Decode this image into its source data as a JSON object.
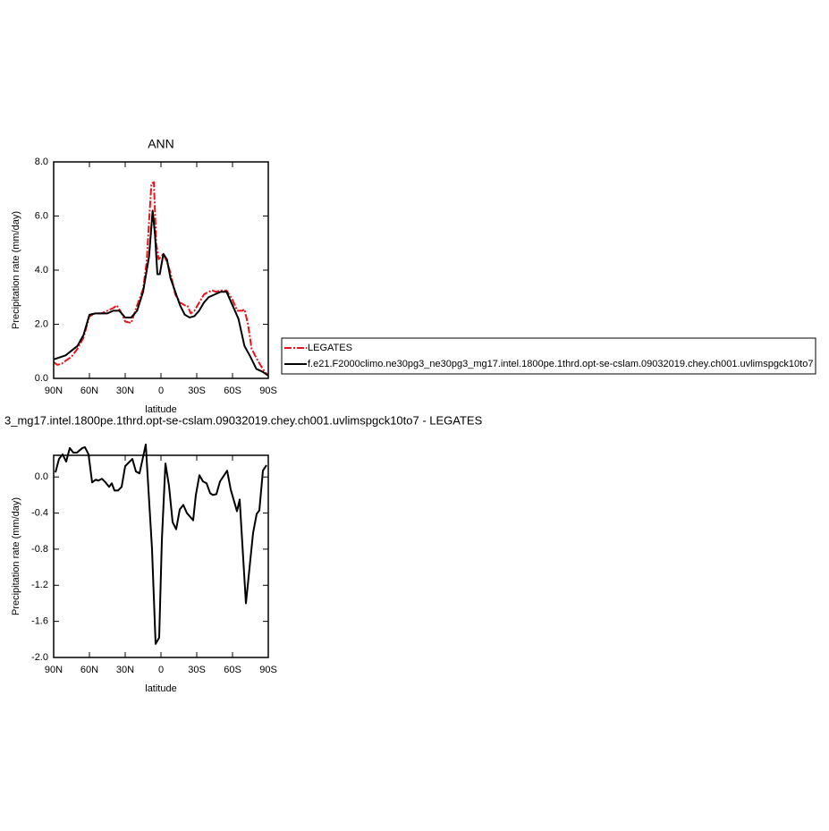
{
  "chart_data": [
    {
      "type": "line",
      "title": "ANN",
      "xlabel": "latitude",
      "ylabel": "Precipitation rate (mm/day)",
      "xlim": [
        90,
        -90
      ],
      "ylim": [
        0,
        8
      ],
      "xticks": [
        {
          "value": 90,
          "label": "90N"
        },
        {
          "value": 60,
          "label": "60N"
        },
        {
          "value": 30,
          "label": "30N"
        },
        0,
        {
          "value": -30,
          "label": "30S"
        },
        {
          "value": -60,
          "label": "60S"
        },
        {
          "value": -90,
          "label": "90S"
        }
      ],
      "yticks": [
        {
          "value": 0,
          "label": "0.0"
        },
        {
          "value": 2,
          "label": "2.0"
        },
        {
          "value": 4,
          "label": "4.0"
        },
        {
          "value": 6,
          "label": "6.0"
        },
        {
          "value": 8,
          "label": "8.0"
        }
      ],
      "series": [
        {
          "name": "LEGATES",
          "color": "#e8141b",
          "dash": true,
          "x": [
            90,
            87,
            83,
            80,
            75,
            70,
            65,
            60,
            55,
            50,
            45,
            40,
            37,
            33,
            30,
            25,
            20,
            15,
            12,
            10,
            8,
            6,
            4,
            2,
            0,
            -2,
            -5,
            -8,
            -12,
            -16,
            -20,
            -22,
            -25,
            -28,
            -32,
            -36,
            -40,
            -43,
            -46,
            -50,
            -55,
            -60,
            -64,
            -68,
            -70,
            -73,
            -76,
            -80,
            -84,
            -87,
            -90
          ],
          "values": [
            0.6,
            0.5,
            0.55,
            0.65,
            0.8,
            1.1,
            1.5,
            2.3,
            2.4,
            2.4,
            2.5,
            2.6,
            2.7,
            2.4,
            2.1,
            2.05,
            2.7,
            3.3,
            4.3,
            5.8,
            7.2,
            7.25,
            5.0,
            4.4,
            4.5,
            4.6,
            4.3,
            3.9,
            3.1,
            2.8,
            2.7,
            2.7,
            2.4,
            2.5,
            2.8,
            3.1,
            3.2,
            3.25,
            3.2,
            3.25,
            3.25,
            2.9,
            2.5,
            2.5,
            2.55,
            2.0,
            1.1,
            0.75,
            0.45,
            0.25,
            0.1
          ]
        },
        {
          "name": "f.e21.F2000climo.ne30pg3_ne30pg3_mg17.intel.1800pe.1thrd.opt-se-cslam.09032019.chey.ch001.uvlimspgck10to7",
          "color": "#000000",
          "dash": false,
          "x": [
            90,
            80,
            70,
            65,
            60,
            55,
            50,
            45,
            40,
            35,
            30,
            25,
            20,
            15,
            10,
            7,
            5,
            3,
            1,
            -2,
            -5,
            -8,
            -12,
            -16,
            -20,
            -24,
            -28,
            -32,
            -36,
            -40,
            -45,
            -50,
            -55,
            -60,
            -65,
            -70,
            -75,
            -80,
            -85,
            -90
          ],
          "values": [
            0.7,
            0.85,
            1.2,
            1.6,
            2.35,
            2.4,
            2.4,
            2.4,
            2.5,
            2.5,
            2.25,
            2.25,
            2.5,
            3.2,
            4.5,
            6.2,
            5.3,
            3.85,
            3.85,
            4.6,
            4.4,
            3.7,
            3.2,
            2.7,
            2.35,
            2.25,
            2.3,
            2.5,
            2.8,
            3.0,
            3.1,
            3.2,
            3.2,
            2.7,
            2.2,
            1.2,
            0.8,
            0.35,
            0.25,
            0.1
          ]
        }
      ]
    },
    {
      "type": "line",
      "title": "3_mg17.intel.1800pe.1thrd.opt-se-cslam.09032019.chey.ch001.uvlimspgck10to7 - LEGATES",
      "xlabel": "latitude",
      "ylabel": "Precipitation rate (mm/day)",
      "xlim": [
        90,
        -90
      ],
      "ylim": [
        -2.0,
        0.24
      ],
      "xticks": [
        {
          "value": 90,
          "label": "90N"
        },
        {
          "value": 60,
          "label": "60N"
        },
        {
          "value": 30,
          "label": "30N"
        },
        0,
        {
          "value": -30,
          "label": "30S"
        },
        {
          "value": -60,
          "label": "60S"
        },
        {
          "value": -90,
          "label": "90S"
        }
      ],
      "yticks": [
        {
          "value": -2.0,
          "label": "-2.0"
        },
        {
          "value": -1.6,
          "label": "-1.6"
        },
        {
          "value": -1.2,
          "label": "-1.2"
        },
        {
          "value": -0.8,
          "label": "-0.8"
        },
        {
          "value": -0.4,
          "label": "-0.4"
        },
        {
          "value": 0,
          "label": "0.0"
        }
      ],
      "color": "#000000",
      "x": [
        88.5,
        85.5,
        82.5,
        79.5,
        76.5,
        73.5,
        70.5,
        66,
        63.75,
        60.75,
        57.75,
        54.75,
        52.5,
        49.5,
        46.5,
        43.5,
        41.25,
        39,
        36,
        33,
        30,
        24,
        21,
        18,
        12.75,
        7.5,
        4.5,
        1.5,
        -0.75,
        -3.75,
        -6.75,
        -9.75,
        -12.75,
        -15.75,
        -18.75,
        -21.75,
        -27,
        -29.25,
        -32.25,
        -35.25,
        -38.25,
        -41.25,
        -43.5,
        -46.5,
        -49.5,
        -55.5,
        -58.5,
        -63.75,
        -66,
        -71.25,
        -77.25,
        -80.25,
        -82.5,
        -85.5,
        -88.5
      ],
      "values": [
        0.05,
        0.2,
        0.25,
        0.17,
        0.32,
        0.27,
        0.27,
        0.32,
        0.33,
        0.25,
        -0.06,
        -0.03,
        -0.04,
        -0.02,
        -0.06,
        -0.11,
        -0.07,
        -0.15,
        -0.15,
        -0.11,
        0.12,
        0.2,
        0.06,
        0.04,
        0.36,
        -0.8,
        -1.85,
        -1.78,
        -0.7,
        0.15,
        -0.1,
        -0.5,
        -0.58,
        -0.36,
        -0.31,
        -0.4,
        -0.48,
        -0.2,
        0.02,
        -0.05,
        -0.07,
        -0.18,
        -0.2,
        -0.19,
        -0.05,
        0.07,
        -0.14,
        -0.38,
        -0.25,
        -1.4,
        -0.62,
        -0.41,
        -0.37,
        0.07,
        0.13
      ]
    }
  ]
}
